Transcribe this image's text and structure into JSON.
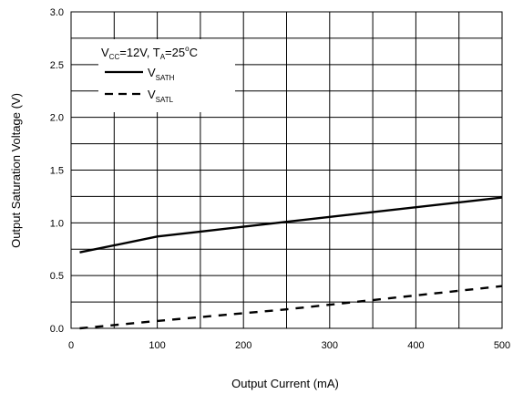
{
  "chart_data": {
    "type": "line",
    "xlabel": "Output Current (mA)",
    "ylabel": "Output Saturation Voltage (V)",
    "xlim": [
      0,
      500
    ],
    "ylim": [
      0,
      3.0
    ],
    "x_ticks": [
      "0",
      "100",
      "200",
      "300",
      "400",
      "500"
    ],
    "y_ticks": [
      "0.0",
      "0.5",
      "1.0",
      "1.5",
      "2.0",
      "2.5",
      "3.0"
    ],
    "grid": true,
    "legend": {
      "placement": "top-left",
      "condition": {
        "v": "V",
        "v_sub": "CC",
        "mid": "=12V, T",
        "t_sub": "A",
        "value": "=25",
        "deg": "o",
        "unit": "C"
      }
    },
    "series": [
      {
        "name": "V",
        "name_sub": "SATH",
        "style": "solid",
        "color": "#000000",
        "x": [
          10,
          100,
          250,
          500
        ],
        "y": [
          0.72,
          0.87,
          1.01,
          1.24
        ]
      },
      {
        "name": "V",
        "name_sub": "SATL",
        "style": "dashed",
        "color": "#000000",
        "x": [
          10,
          100,
          250,
          500
        ],
        "y": [
          0.0,
          0.07,
          0.18,
          0.4
        ]
      }
    ]
  }
}
